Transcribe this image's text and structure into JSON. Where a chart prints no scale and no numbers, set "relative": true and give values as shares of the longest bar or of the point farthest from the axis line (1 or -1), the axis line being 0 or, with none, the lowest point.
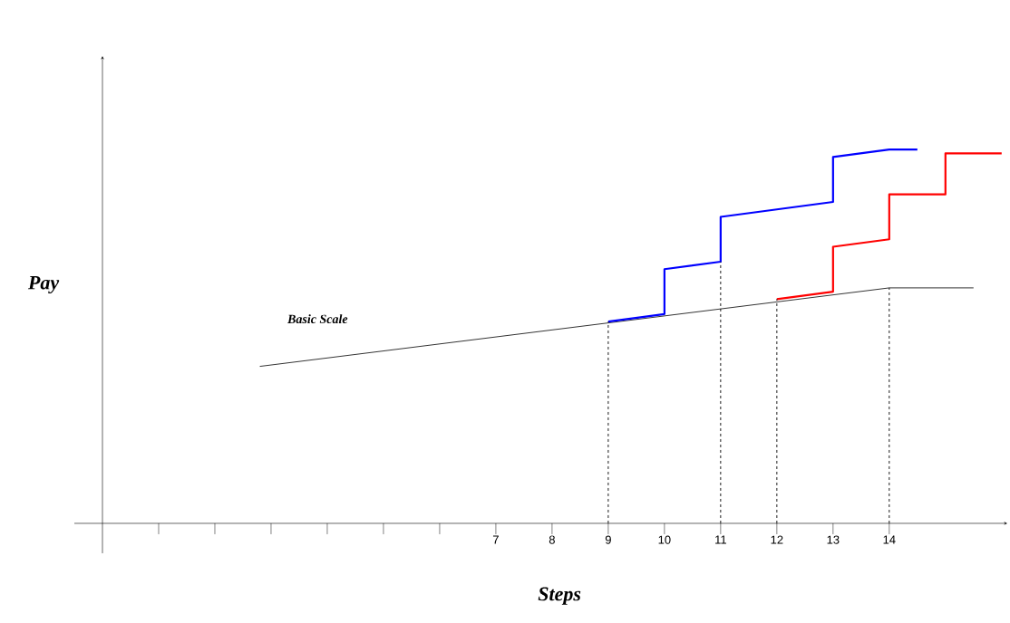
{
  "chart_data": {
    "type": "line",
    "relative": true,
    "xlabel": "Steps",
    "ylabel": "Pay",
    "xlim": [
      -0.5,
      16.1
    ],
    "xticks": [
      {
        "value": 1,
        "label": null
      },
      {
        "value": 2,
        "label": null
      },
      {
        "value": 3,
        "label": null
      },
      {
        "value": 4,
        "label": null
      },
      {
        "value": 5,
        "label": null
      },
      {
        "value": 6,
        "label": null
      },
      7,
      8,
      9,
      10,
      11,
      12,
      13,
      14
    ],
    "series": [
      {
        "name": "Basic Scale",
        "color": "#000000",
        "x": [
          2.8,
          14,
          15.5
        ],
        "values": [
          0.42,
          0.63,
          0.63
        ]
      },
      {
        "color": "#0000ff",
        "x": [
          9,
          10,
          10,
          11,
          11,
          13,
          13,
          14,
          14.5
        ],
        "values": [
          0.54,
          0.56,
          0.68,
          0.7,
          0.82,
          0.86,
          0.98,
          1.0,
          1.0
        ]
      },
      {
        "color": "#ff0000",
        "x": [
          12,
          13,
          13,
          14,
          14,
          15,
          15,
          16
        ],
        "values": [
          0.6,
          0.62,
          0.74,
          0.76,
          0.88,
          0.88,
          0.99,
          0.99
        ]
      }
    ],
    "ref_lines": [
      {
        "axis": "x",
        "value": 9,
        "color": "#000000",
        "line_style": "dashed"
      },
      {
        "axis": "x",
        "value": 11,
        "color": "#000000",
        "line_style": "dashed"
      },
      {
        "axis": "x",
        "value": 12,
        "color": "#000000",
        "line_style": "dashed"
      },
      {
        "axis": "x",
        "value": 14,
        "color": "#000000",
        "line_style": "dashed"
      }
    ],
    "marker": "none",
    "line_style": "solid",
    "grid": false
  }
}
